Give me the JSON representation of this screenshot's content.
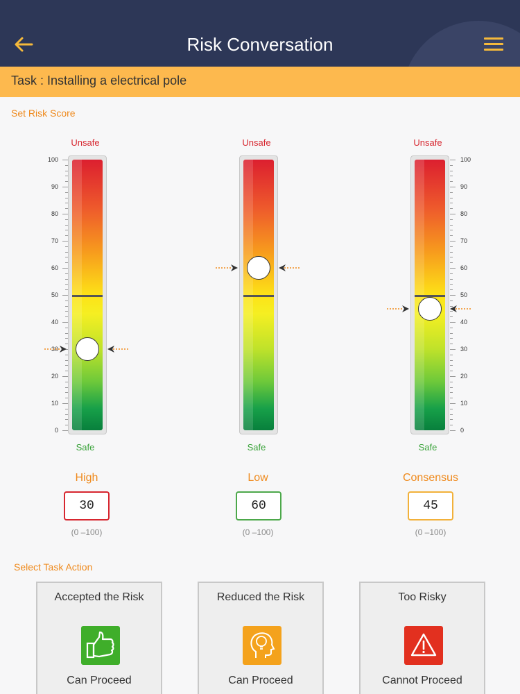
{
  "header": {
    "title": "Risk Conversation",
    "back_icon": "arrow-left-icon",
    "menu_icon": "hamburger-menu-icon"
  },
  "task": {
    "label": "Task : Installing a electrical pole"
  },
  "risk_score_label": "Set Risk Score",
  "gauges": [
    {
      "name": "high",
      "unsafe": "Unsafe",
      "safe": "Safe",
      "value": 30,
      "title": "High",
      "box_value": "30",
      "range": "(0 –100)",
      "border_color": "#d7262f"
    },
    {
      "name": "low",
      "unsafe": "Unsafe",
      "safe": "Safe",
      "value": 60,
      "title": "Low",
      "box_value": "60",
      "range": "(0 –100)",
      "border_color": "#4ca84a"
    },
    {
      "name": "consensus",
      "unsafe": "Unsafe",
      "safe": "Safe",
      "value": 45,
      "title": "Consensus",
      "box_value": "45",
      "range": "(0 –100)",
      "border_color": "#f2b13a"
    }
  ],
  "scale_labels": [
    "100",
    "90",
    "80",
    "70",
    "60",
    "50",
    "40",
    "30",
    "20",
    "10",
    "0"
  ],
  "task_action_label": "Select Task Action",
  "actions": [
    {
      "title": "Accepted the Risk",
      "status": "Can Proceed",
      "icon": "thumbs-up-icon",
      "color": "#3fae2a"
    },
    {
      "title": "Reduced the Risk",
      "status": "Can Proceed",
      "icon": "lightbulb-head-icon",
      "color": "#f4a21c"
    },
    {
      "title": "Too Risky",
      "status": "Cannot Proceed",
      "icon": "warning-triangle-icon",
      "color": "#e2301f"
    }
  ]
}
